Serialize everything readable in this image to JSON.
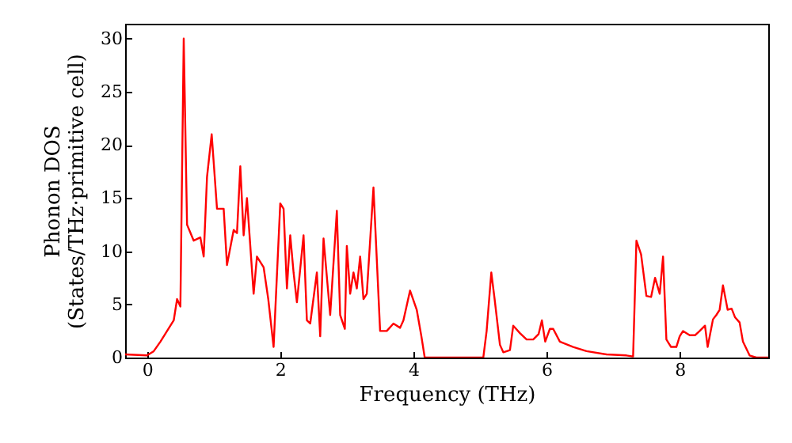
{
  "chart_data": {
    "type": "line",
    "xlabel": "Frequency (THz)",
    "ylabel": "Phonon DOS\n(States/THz·primitive cell)",
    "xlim": [
      -0.33,
      9.33
    ],
    "ylim": [
      0,
      31.4
    ],
    "xticks": [
      0,
      2,
      4,
      6,
      8
    ],
    "yticks": [
      0,
      5,
      10,
      15,
      20,
      25,
      30
    ],
    "grid": false,
    "series": [
      {
        "color": "#ff0000",
        "x": [
          -0.33,
          0,
          0.1,
          0.2,
          0.3,
          0.4,
          0.45,
          0.5,
          0.55,
          0.6,
          0.7,
          0.8,
          0.85,
          0.9,
          0.97,
          1.05,
          1.15,
          1.2,
          1.3,
          1.35,
          1.4,
          1.45,
          1.5,
          1.6,
          1.65,
          1.75,
          1.82,
          1.9,
          2.0,
          2.05,
          2.1,
          2.15,
          2.2,
          2.25,
          2.35,
          2.4,
          2.45,
          2.55,
          2.6,
          2.65,
          2.75,
          2.85,
          2.9,
          2.97,
          3.0,
          3.05,
          3.1,
          3.15,
          3.2,
          3.25,
          3.3,
          3.4,
          3.5,
          3.6,
          3.7,
          3.8,
          3.85,
          3.95,
          4.05,
          4.12,
          4.17,
          5.05,
          5.1,
          5.17,
          5.22,
          5.3,
          5.35,
          5.45,
          5.5,
          5.6,
          5.7,
          5.8,
          5.88,
          5.93,
          5.98,
          6.05,
          6.1,
          6.2,
          6.4,
          6.6,
          6.9,
          7.2,
          7.3,
          7.35,
          7.42,
          7.5,
          7.57,
          7.63,
          7.7,
          7.75,
          7.8,
          7.87,
          7.95,
          8.0,
          8.05,
          8.15,
          8.23,
          8.3,
          8.38,
          8.42,
          8.5,
          8.55,
          8.6,
          8.65,
          8.72,
          8.78,
          8.83,
          8.9,
          8.95,
          9.05,
          9.15,
          9.33
        ],
        "values": [
          0.3,
          0.2,
          0.6,
          1.5,
          2.5,
          3.5,
          5.5,
          4.8,
          30,
          12.5,
          11,
          11.3,
          9.5,
          17,
          21,
          14,
          14,
          8.7,
          12,
          11.7,
          18,
          11.5,
          15,
          6,
          9.5,
          8.5,
          5.5,
          1,
          14.5,
          14,
          6.5,
          11.5,
          8,
          5.2,
          11.5,
          3.5,
          3.2,
          8,
          2,
          11.2,
          4,
          13.8,
          4,
          2.7,
          10.5,
          6,
          8,
          6.5,
          9.5,
          5.5,
          6,
          16,
          2.5,
          2.5,
          3.2,
          2.8,
          3.5,
          6.3,
          4.5,
          2,
          0,
          0,
          2.5,
          8,
          5.5,
          1.2,
          0.5,
          0.7,
          3,
          2.3,
          1.7,
          1.7,
          2.2,
          3.5,
          1.5,
          2.7,
          2.7,
          1.5,
          1,
          0.6,
          0.3,
          0.2,
          0.1,
          11,
          9.7,
          5.8,
          5.7,
          7.5,
          6,
          9.5,
          1.7,
          1,
          1,
          2,
          2.5,
          2.1,
          2.1,
          2.5,
          3,
          1,
          3.6,
          4,
          4.5,
          6.8,
          4.5,
          4.6,
          3.8,
          3.3,
          1.5,
          0.2,
          0,
          0
        ]
      }
    ]
  }
}
